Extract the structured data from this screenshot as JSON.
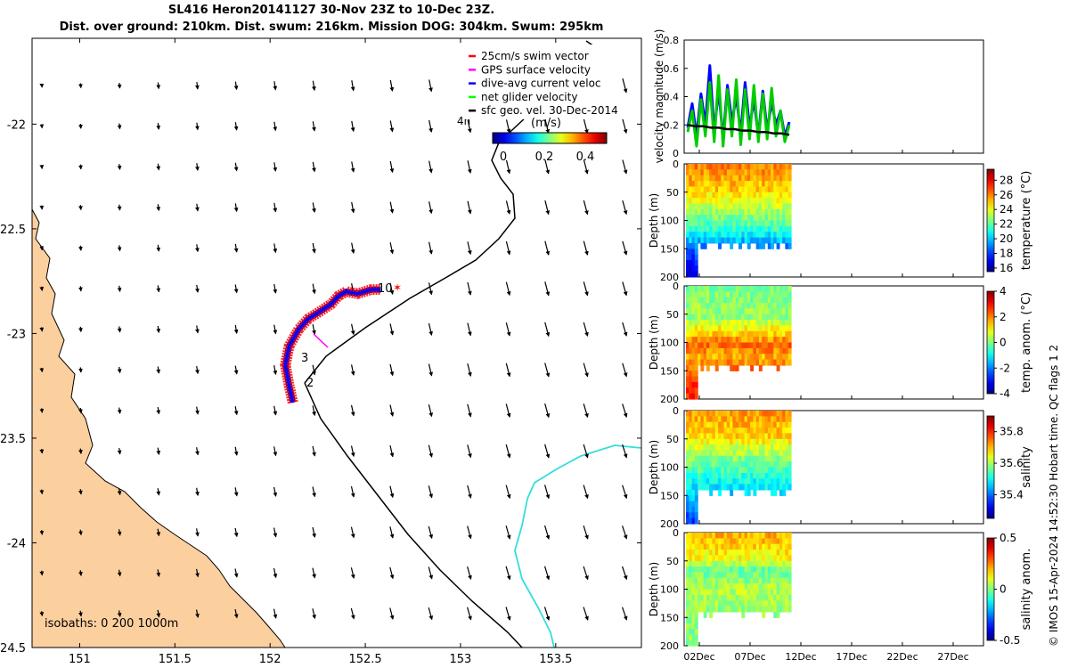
{
  "title_line1": "SL416 Heron20141127 30-Nov 23Z to 10-Dec 23Z.",
  "title_line2": "Dist. over ground: 210km. Dist. swum: 216km. Mission DOG: 304km. Swum: 295km",
  "credit": "© IMOS 15-Apr-2024 14:52:30 Hobart time. QC flags 1  2",
  "map": {
    "isobaths": "isobaths: 0   200  1000m",
    "time_marker": "4h",
    "track_labels": [
      "10",
      "3",
      "2"
    ],
    "legend": [
      {
        "label": "25cm/s swim vector",
        "color": "#ff0000"
      },
      {
        "label": "GPS surface velocity",
        "color": "#ff00ff"
      },
      {
        "label": "dive-avg current veloc",
        "color": "#0000ff"
      },
      {
        "label": "net glider velocity",
        "color": "#00ff00"
      },
      {
        "label": "sfc geo. vel. 30-Dec-2014",
        "color": "#000000"
      }
    ],
    "colorbar": {
      "label": "(m/s)",
      "ticks": [
        "0",
        "0.2",
        "0.4"
      ]
    },
    "land_color": "#fccf9f",
    "current_color": "#33dddd"
  },
  "chart_data": [
    {
      "type": "line",
      "name": "map",
      "x_ticks": [
        151,
        151.5,
        152,
        152.5,
        153,
        153.5
      ],
      "x_tick_labels": [
        "151",
        "151.5",
        "152",
        "152.5",
        "153",
        "153.5"
      ],
      "y_ticks": [
        -22,
        -22.5,
        -23,
        -23.5,
        -24,
        -24.5
      ],
      "y_tick_labels": [
        "-22",
        "-22.5",
        "-23",
        "-23.5",
        "-24",
        "-24.5"
      ],
      "xlim": [
        150.75,
        153.95
      ],
      "ylim": [
        -24.5,
        -21.59
      ],
      "glider_track": [
        [
          152.12,
          -23.33
        ],
        [
          152.1,
          -23.25
        ],
        [
          152.08,
          -23.15
        ],
        [
          152.1,
          -23.06
        ],
        [
          152.15,
          -22.98
        ],
        [
          152.2,
          -22.93
        ],
        [
          152.27,
          -22.89
        ],
        [
          152.32,
          -22.86
        ],
        [
          152.36,
          -22.82
        ],
        [
          152.4,
          -22.8
        ],
        [
          152.46,
          -22.81
        ],
        [
          152.53,
          -22.79
        ],
        [
          152.58,
          -22.79
        ]
      ]
    },
    {
      "type": "line",
      "name": "velocity magnitude",
      "ylabel": "velocity magnitude (m/s)",
      "ylim": [
        0,
        0.8
      ],
      "y_tick_labels": [
        "0",
        "0.2",
        "0.4",
        "0.6",
        "0.8"
      ],
      "series": [
        {
          "name": "dive-avg current",
          "color": "#0000ff",
          "values": [
            0.18,
            0.35,
            0.12,
            0.42,
            0.2,
            0.62,
            0.15,
            0.45,
            0.1,
            0.48,
            0.22,
            0.4,
            0.14,
            0.5,
            0.18,
            0.38,
            0.12,
            0.44,
            0.16,
            0.36,
            0.2,
            0.3,
            0.12,
            0.22
          ]
        },
        {
          "name": "net glider velocity",
          "color": "#00cc00",
          "values": [
            0.15,
            0.3,
            0.05,
            0.38,
            0.12,
            0.5,
            0.08,
            0.55,
            0.05,
            0.45,
            0.12,
            0.52,
            0.06,
            0.45,
            0.1,
            0.48,
            0.08,
            0.42,
            0.1,
            0.46,
            0.12,
            0.3,
            0.08,
            0.2
          ]
        },
        {
          "name": "sfc geo. vel.",
          "color": "#000000",
          "values": [
            0.2,
            0.19,
            0.19,
            0.18,
            0.18,
            0.17,
            0.17,
            0.16,
            0.16,
            0.15,
            0.15,
            0.14,
            0.14,
            0.13
          ]
        }
      ]
    },
    {
      "type": "heatmap",
      "name": "temperature",
      "ylabel": "Depth (m)",
      "colorbar_label": "temperature (°C)",
      "colorbar_ticks": [
        "16",
        "18",
        "20",
        "22",
        "24",
        "26",
        "28"
      ],
      "cmin": 15.5,
      "cmax": 29.5,
      "profile": [
        [
          0,
          26
        ],
        [
          40,
          25
        ],
        [
          80,
          23
        ],
        [
          110,
          21.5
        ],
        [
          140,
          19
        ],
        [
          200,
          16
        ]
      ]
    },
    {
      "type": "heatmap",
      "name": "temp. anom.",
      "ylabel": "Depth (m)",
      "colorbar_label": "temp. anom. (°C)",
      "colorbar_ticks": [
        "-4",
        "-2",
        "0",
        "2",
        "4"
      ],
      "cmin": -4,
      "cmax": 4,
      "profile": [
        [
          0,
          0
        ],
        [
          50,
          0.2
        ],
        [
          80,
          1.4
        ],
        [
          100,
          2.2
        ],
        [
          120,
          1.6
        ],
        [
          150,
          2.4
        ],
        [
          200,
          2.8
        ]
      ]
    },
    {
      "type": "heatmap",
      "name": "salinity",
      "ylabel": "Depth (m)",
      "colorbar_label": "salinity",
      "colorbar_ticks": [
        "35.4",
        "35.6",
        "35.8"
      ],
      "cmin": 35.25,
      "cmax": 35.9,
      "profile": [
        [
          0,
          35.72
        ],
        [
          40,
          35.68
        ],
        [
          80,
          35.58
        ],
        [
          120,
          35.5
        ],
        [
          150,
          35.45
        ],
        [
          200,
          35.35
        ]
      ]
    },
    {
      "type": "heatmap",
      "name": "salinity anom.",
      "ylabel": "Depth (m)",
      "colorbar_label": "salinity anom.",
      "colorbar_ticks": [
        "-0.5",
        "0",
        "0.5"
      ],
      "cmin": -0.5,
      "cmax": 0.5,
      "profile": [
        [
          0,
          0.2
        ],
        [
          40,
          0.12
        ],
        [
          60,
          -0.02
        ],
        [
          100,
          0.05
        ],
        [
          140,
          0.02
        ],
        [
          200,
          0.0
        ]
      ]
    },
    {
      "type": "axis",
      "name": "time axis",
      "x_tick_labels": [
        "02Dec",
        "07Dec",
        "12Dec",
        "17Dec",
        "22Dec",
        "27Dec"
      ],
      "depth_tick_labels": [
        "0",
        "50",
        "100",
        "150",
        "200"
      ]
    }
  ]
}
